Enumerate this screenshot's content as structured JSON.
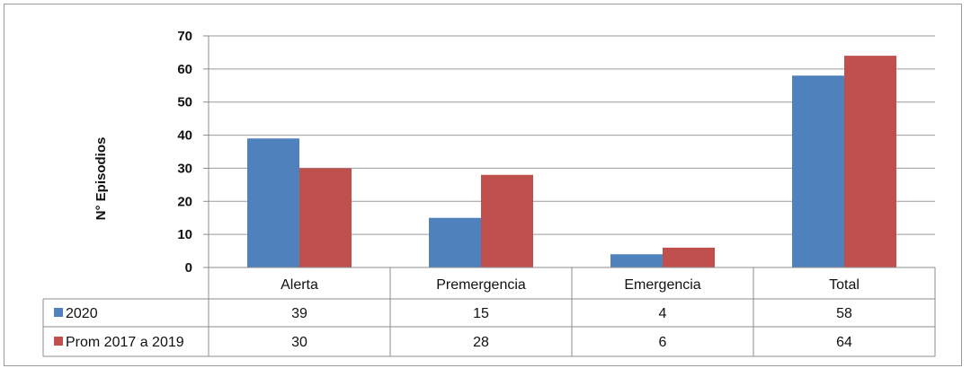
{
  "chart_data": {
    "type": "bar",
    "ylabel": "N° Episodios",
    "ylim": [
      0,
      70
    ],
    "yticks": [
      0,
      10,
      20,
      30,
      40,
      50,
      60,
      70
    ],
    "grid": true,
    "legend": "data-table-left",
    "categories": [
      "Alerta",
      "Premergencia",
      "Emergencia",
      "Total"
    ],
    "series": [
      {
        "name": "2020",
        "color": "#4f81bd",
        "values": [
          39,
          15,
          4,
          58
        ]
      },
      {
        "name": "Prom 2017 a 2019",
        "color": "#c0504d",
        "values": [
          30,
          28,
          6,
          64
        ]
      }
    ]
  }
}
